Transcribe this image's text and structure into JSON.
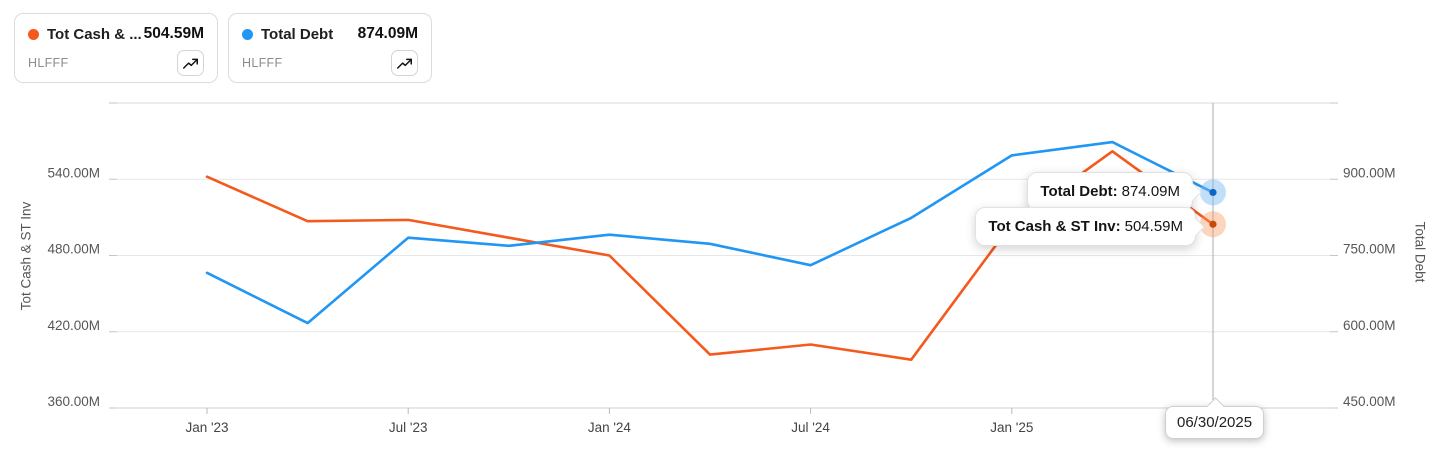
{
  "legend": {
    "cards": [
      {
        "name": "Tot Cash & ...",
        "value": "504.59M",
        "ticker": "HLFFF",
        "color": "#f4591d"
      },
      {
        "name": "Total Debt",
        "value": "874.09M",
        "ticker": "HLFFF",
        "color": "#2196f3"
      }
    ],
    "spark_icon": "trending-up-icon"
  },
  "chart_data": {
    "type": "line",
    "x": [
      "12/31/2022",
      "03/31/2023",
      "06/30/2023",
      "09/30/2023",
      "12/31/2023",
      "03/31/2024",
      "06/30/2024",
      "09/30/2024",
      "12/31/2024",
      "03/31/2025",
      "06/30/2025"
    ],
    "series": [
      {
        "name": "Tot Cash & ST Inv",
        "axis": "left",
        "color": "#f4591d",
        "point_color": "#c44a0e",
        "halo_color": "rgba(250,150,90,0.40)",
        "values": [
          542,
          507,
          508,
          494,
          480,
          402,
          410,
          398,
          505,
          562,
          504.59
        ]
      },
      {
        "name": "Total Debt",
        "axis": "right",
        "color": "#2196f3",
        "point_color": "#1166c2",
        "halo_color": "rgba(120,185,245,0.45)",
        "values": [
          716,
          617,
          785,
          769,
          791,
          773,
          731,
          824,
          947,
          973,
          874.09
        ]
      }
    ],
    "left_axis": {
      "label": "Tot Cash & ST Inv",
      "min": 360,
      "max": 600,
      "ticks": [
        {
          "value": 540,
          "label": "540.00M"
        },
        {
          "value": 480,
          "label": "480.00M"
        },
        {
          "value": 420,
          "label": "420.00M"
        },
        {
          "value": 360,
          "label": "360.00M"
        }
      ]
    },
    "right_axis": {
      "label": "Total Debt",
      "min": 450,
      "max": 1050,
      "ticks": [
        {
          "value": 900,
          "label": "900.00M"
        },
        {
          "value": 750,
          "label": "750.00M"
        },
        {
          "value": 600,
          "label": "600.00M"
        },
        {
          "value": 450,
          "label": "450.00M"
        }
      ]
    },
    "x_axis_ticks": [
      {
        "label": "Jan '23",
        "month": 0
      },
      {
        "label": "Jul '23",
        "month": 6
      },
      {
        "label": "Jan '24",
        "month": 12
      },
      {
        "label": "Jul '24",
        "month": 18
      },
      {
        "label": "Jan '25",
        "month": 24
      }
    ],
    "grid": true,
    "legend_position": "top-left",
    "crosshair": {
      "date": "06/30/2025",
      "index": 10
    }
  },
  "tooltips": {
    "debt_label": "Total Debt:",
    "debt_value": "874.09M",
    "cash_label": "Tot Cash & ST Inv:",
    "cash_value": "504.59M",
    "date": "06/30/2025"
  }
}
